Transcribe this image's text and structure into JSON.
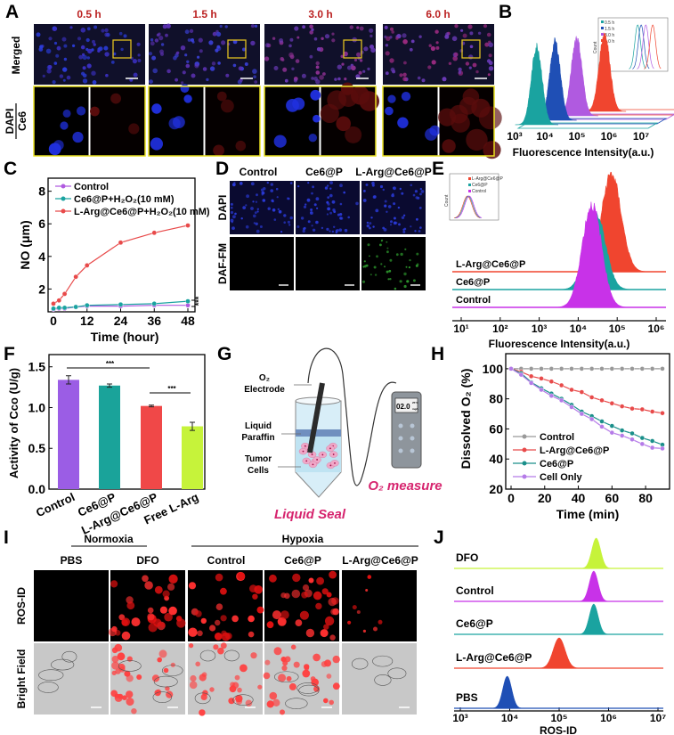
{
  "panel_letters": [
    "A",
    "B",
    "C",
    "D",
    "E",
    "F",
    "G",
    "H",
    "I",
    "J"
  ],
  "colors": {
    "teal": "#1aa3a0",
    "blue": "#1f4fb5",
    "purple": "#b05ae0",
    "red": "#f0452f",
    "magenta": "#c832e8",
    "lime": "#c6f33a",
    "gray": "#999999",
    "green": "#3fbf3f",
    "pink_text": "#d6246e"
  },
  "panel_a": {
    "time_labels": [
      "0.5 h",
      "1.5 h",
      "3.0 h",
      "6.0 h"
    ],
    "row_labels": {
      "merged": "Merged",
      "dapi": "DAPI",
      "ce6": "Ce6"
    }
  },
  "panel_b": {
    "xticks": [
      "10³",
      "10⁴",
      "10⁵",
      "10⁶",
      "10⁷"
    ],
    "xlabel": "Fluorescence Intensity(a.u.)",
    "series_colors": [
      "#1aa3a0",
      "#1f4fb5",
      "#b05ae0",
      "#f0452f"
    ],
    "peaks_log10": [
      3.7,
      4.0,
      4.4,
      5.0
    ],
    "inset": {
      "legend": [
        "0.5 h",
        "1.5 h",
        "3.0 h",
        "6.0 h"
      ],
      "ylabel": "Count",
      "xticks": [
        "10⁰",
        "10¹",
        "10²",
        "10³",
        "10⁴",
        "10⁵"
      ]
    }
  },
  "panel_d": {
    "col_labels": [
      "Control",
      "Ce6@P",
      "L-Arg@Ce6@P"
    ],
    "row_labels": [
      "DAPI",
      "DAF-FM"
    ]
  },
  "panel_e": {
    "xticks": [
      "10¹",
      "10²",
      "10³",
      "10⁴",
      "10⁵",
      "10⁶"
    ],
    "xlabel": "Fluorescence Intensity(a.u.)",
    "series": [
      {
        "name": "L-Arg@Ce6@P",
        "color": "#f0452f",
        "peak_log10": 4.85
      },
      {
        "name": "Ce6@P",
        "color": "#1aa3a0",
        "peak_log10": 4.45
      },
      {
        "name": "Control",
        "color": "#c832e8",
        "peak_log10": 4.35
      }
    ],
    "inset": {
      "legend": [
        "L-Arg@Ce6@P",
        "Ce6@P",
        "Control"
      ],
      "ylabel": "Count"
    }
  },
  "panel_g": {
    "electrode": "O₂",
    "electrode2": "Electrode",
    "paraffin1": "Liquid",
    "paraffin2": "Paraffin",
    "cells1": "Tumor",
    "cells2": "Cells",
    "seal": "Liquid Seal",
    "measure": "O₂ measure",
    "meter_value": "02.0",
    "meter_temp": "25°C",
    "meter_unit": "mg/L"
  },
  "panel_i": {
    "groups": [
      "Normoxia",
      "Hypoxia"
    ],
    "col_labels": [
      "PBS",
      "DFO",
      "Control",
      "Ce6@P",
      "L-Arg@Ce6@P"
    ],
    "row_labels": [
      "ROS-ID",
      "Bright Field"
    ]
  },
  "panel_j": {
    "xticks": [
      "10³",
      "10⁴",
      "10⁵",
      "10⁶",
      "10⁷"
    ],
    "xlabel": "ROS-ID",
    "series": [
      {
        "name": "DFO",
        "color": "#c6f33a",
        "peak_log10": 5.75
      },
      {
        "name": "Control",
        "color": "#c832e8",
        "peak_log10": 5.7
      },
      {
        "name": "Ce6@P",
        "color": "#1aa3a0",
        "peak_log10": 5.7
      },
      {
        "name": "L-Arg@Ce6@P",
        "color": "#f0452f",
        "peak_log10": 5.0
      },
      {
        "name": "PBS",
        "color": "#1f4fb5",
        "peak_log10": 3.95
      }
    ]
  },
  "chart_data": [
    {
      "panel": "C",
      "type": "line",
      "xlabel": "Time (hour)",
      "ylabel": "NO (μm)",
      "x": [
        0,
        2,
        4,
        8,
        12,
        24,
        36,
        48
      ],
      "xticks": [
        "0",
        "12",
        "24",
        "36",
        "48"
      ],
      "yticks": [
        "2",
        "4",
        "6",
        "8"
      ],
      "xlim": [
        0,
        48
      ],
      "ylim": [
        0.6,
        8.8
      ],
      "legend": "top-left",
      "significance": "***",
      "series": [
        {
          "name": "Control",
          "color": "#b05ae0",
          "values": [
            0.75,
            0.8,
            0.8,
            0.9,
            0.95,
            0.95,
            1.0,
            1.0
          ]
        },
        {
          "name": "Ce6@P+H₂O₂(10 mM)",
          "color": "#1aa3a0",
          "values": [
            0.8,
            0.85,
            0.85,
            0.9,
            1.0,
            1.05,
            1.1,
            1.25
          ]
        },
        {
          "name": "L-Arg@Ce6@P+H₂O₂(10 mM)",
          "color": "#e84a4a",
          "values": [
            1.1,
            1.3,
            1.7,
            2.75,
            3.45,
            4.85,
            5.45,
            5.9
          ]
        }
      ]
    },
    {
      "panel": "F",
      "type": "bar",
      "ylabel": "Activity of Cco (U/g)",
      "categories": [
        "Control",
        "Ce6@P",
        "L-Arg@Ce6@P",
        "Free L-Arg"
      ],
      "values": [
        1.34,
        1.27,
        1.02,
        0.77
      ],
      "errors": [
        0.05,
        0.02,
        0.01,
        0.05
      ],
      "colors": [
        "#9b5de5",
        "#1aa39a",
        "#f04848",
        "#c6f33a"
      ],
      "yticks": [
        "0.0",
        "0.5",
        "1.0",
        "1.5"
      ],
      "ylim": [
        0,
        1.65
      ],
      "significance": [
        {
          "from": 0,
          "to": 2,
          "label": "***"
        },
        {
          "from": 2,
          "to": 3,
          "label": "***"
        }
      ]
    },
    {
      "panel": "H",
      "type": "line",
      "xlabel": "Time (min)",
      "ylabel": "Dissolved O₂ (%)",
      "x": [
        0,
        6,
        12,
        18,
        24,
        30,
        36,
        42,
        48,
        54,
        60,
        66,
        72,
        78,
        84,
        90
      ],
      "xticks": [
        "0",
        "20",
        "40",
        "60",
        "80"
      ],
      "yticks": [
        "20",
        "40",
        "60",
        "80",
        "100"
      ],
      "xlim": [
        0,
        90
      ],
      "ylim": [
        20,
        110
      ],
      "legend": "bottom-left",
      "series": [
        {
          "name": "Control",
          "color": "#999999",
          "values": [
            100,
            100,
            100,
            100,
            100,
            100,
            100,
            100,
            100,
            100,
            100,
            100,
            100,
            100,
            100,
            100
          ]
        },
        {
          "name": "L-Arg@Ce6@P",
          "color": "#e84a4a",
          "values": [
            100,
            98,
            95,
            93.5,
            91.5,
            89,
            86,
            84.5,
            81,
            79,
            77,
            75,
            73.5,
            73,
            71.5,
            70.5
          ]
        },
        {
          "name": "Ce6@P",
          "color": "#1a8f8a",
          "values": [
            100,
            97,
            91,
            87,
            83.5,
            80,
            76,
            71.5,
            68.5,
            65,
            62,
            59,
            57,
            54,
            52,
            49.5
          ]
        },
        {
          "name": "Cell Only",
          "color": "#b57be8",
          "values": [
            100,
            96,
            90.5,
            86,
            82,
            79,
            74.5,
            70,
            66.5,
            61.5,
            57.5,
            55.5,
            53,
            50,
            47.5,
            47
          ]
        }
      ]
    }
  ]
}
